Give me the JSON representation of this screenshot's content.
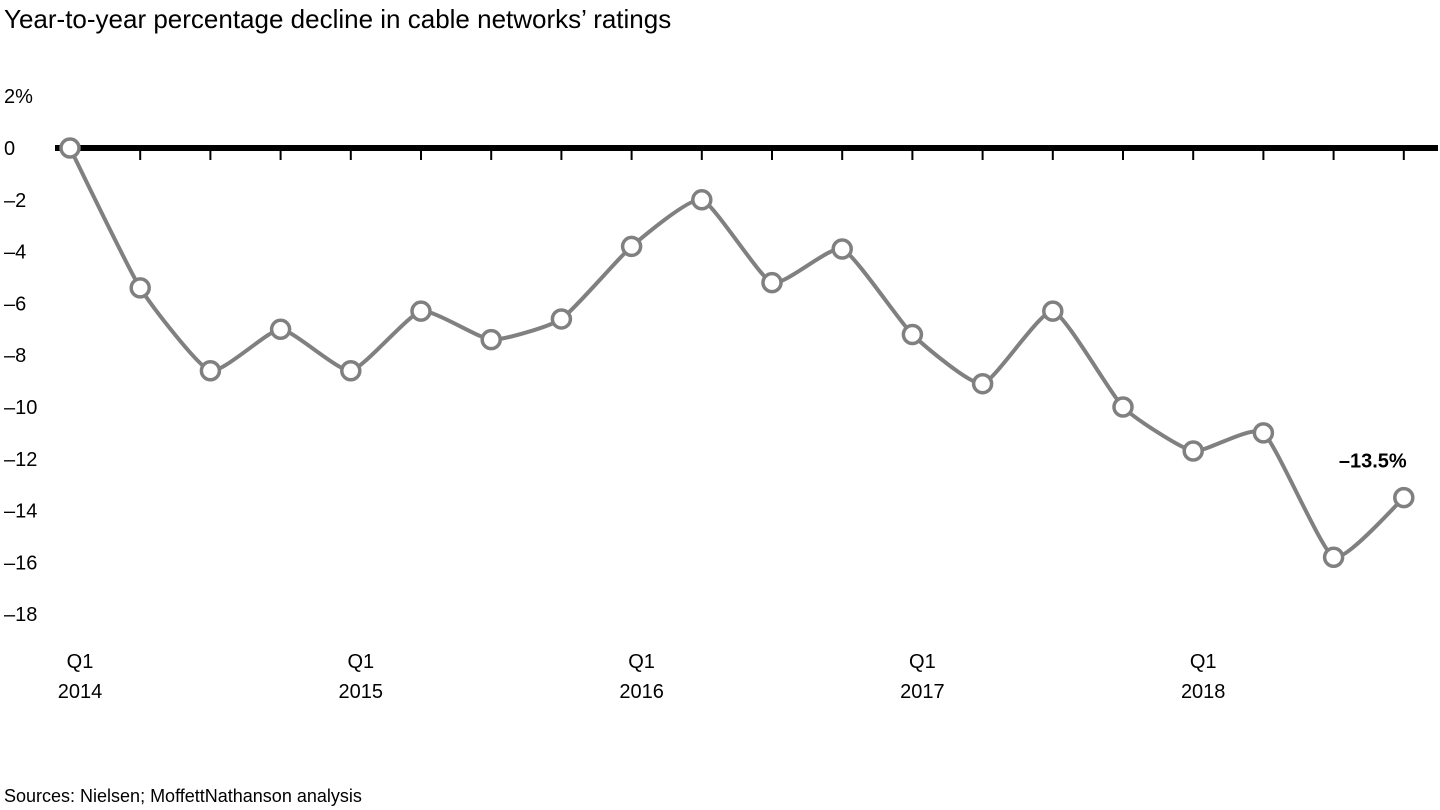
{
  "title": "Year-to-year percentage decline in cable networks’ ratings",
  "source": "Sources: Nielsen; MoffettNathanson analysis",
  "chart_data": {
    "type": "line",
    "title": "Year-to-year percentage decline in cable networks’ ratings",
    "xlabel": "",
    "ylabel": "",
    "ylim": [
      -18,
      2
    ],
    "y_ticks": [
      {
        "value": 2,
        "label": "2%"
      },
      {
        "value": 0,
        "label": "0"
      },
      {
        "value": -2,
        "label": "–2"
      },
      {
        "value": -4,
        "label": "–4"
      },
      {
        "value": -6,
        "label": "–6"
      },
      {
        "value": -8,
        "label": "–8"
      },
      {
        "value": -10,
        "label": "–10"
      },
      {
        "value": -12,
        "label": "–12"
      },
      {
        "value": -14,
        "label": "–14"
      },
      {
        "value": -16,
        "label": "–16"
      },
      {
        "value": -18,
        "label": "–18"
      }
    ],
    "x_labels": [
      {
        "index": 0,
        "quarter": "Q1",
        "year": "2014"
      },
      {
        "index": 4,
        "quarter": "Q1",
        "year": "2015"
      },
      {
        "index": 8,
        "quarter": "Q1",
        "year": "2016"
      },
      {
        "index": 12,
        "quarter": "Q1",
        "year": "2017"
      },
      {
        "index": 16,
        "quarter": "Q1",
        "year": "2018"
      }
    ],
    "series": [
      {
        "values": [
          0,
          -5.4,
          -8.6,
          -7.0,
          -8.6,
          -6.3,
          -7.4,
          -6.6,
          -3.8,
          -2.0,
          -5.2,
          -3.9,
          -7.2,
          -9.1,
          -6.3,
          -10.0,
          -11.7,
          -11.0,
          -15.8,
          -13.5
        ],
        "color": "#808080"
      }
    ],
    "annotations": [
      {
        "index": 19,
        "text": "–13.5%"
      }
    ],
    "zero_line": true,
    "grid": false,
    "legend": "none"
  }
}
